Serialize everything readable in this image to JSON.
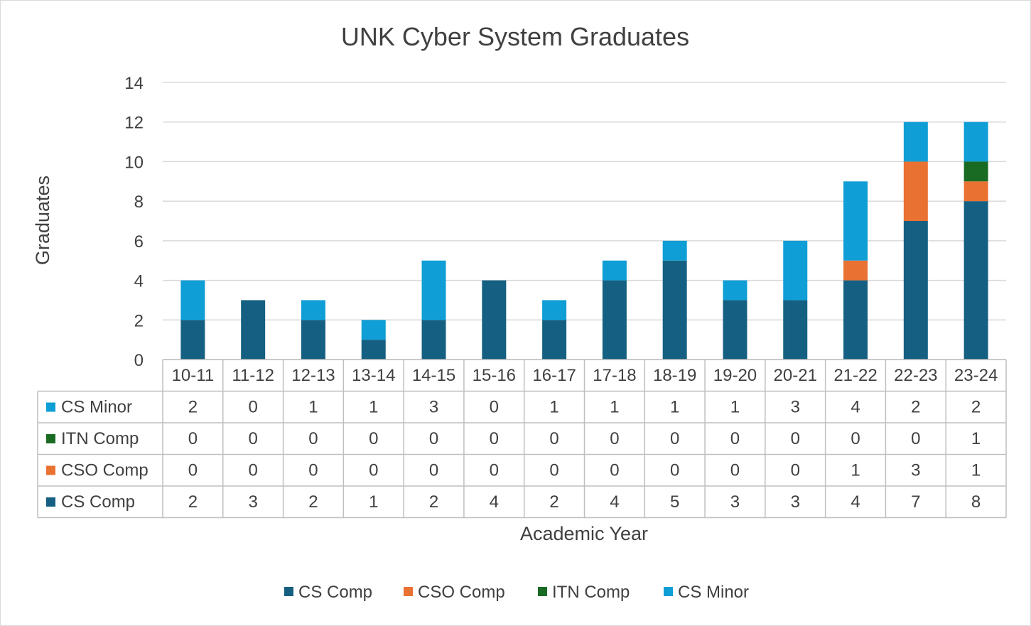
{
  "chart_data": {
    "type": "bar",
    "stacked": true,
    "title": "UNK Cyber System Graduates",
    "xlabel": "Academic Year",
    "ylabel": "Graduates",
    "ylim": [
      0,
      14
    ],
    "yticks": [
      0,
      2,
      4,
      6,
      8,
      10,
      12,
      14
    ],
    "grid": true,
    "legend_position": "bottom",
    "data_table": true,
    "categories": [
      "10-11",
      "11-12",
      "12-13",
      "13-14",
      "14-15",
      "15-16",
      "16-17",
      "17-18",
      "18-19",
      "19-20",
      "20-21",
      "21-22",
      "22-23",
      "23-24"
    ],
    "series": [
      {
        "name": "CS Comp",
        "color": "#156082",
        "values": [
          2,
          3,
          2,
          1,
          2,
          4,
          2,
          4,
          5,
          3,
          3,
          4,
          7,
          8
        ]
      },
      {
        "name": "CSO Comp",
        "color": "#E97132",
        "values": [
          0,
          0,
          0,
          0,
          0,
          0,
          0,
          0,
          0,
          0,
          0,
          1,
          3,
          1
        ]
      },
      {
        "name": "ITN Comp",
        "color": "#196B24",
        "values": [
          0,
          0,
          0,
          0,
          0,
          0,
          0,
          0,
          0,
          0,
          0,
          0,
          0,
          1
        ]
      },
      {
        "name": "CS Minor",
        "color": "#0F9ED5",
        "values": [
          2,
          0,
          1,
          1,
          3,
          0,
          1,
          1,
          1,
          1,
          3,
          4,
          2,
          2
        ]
      }
    ]
  }
}
